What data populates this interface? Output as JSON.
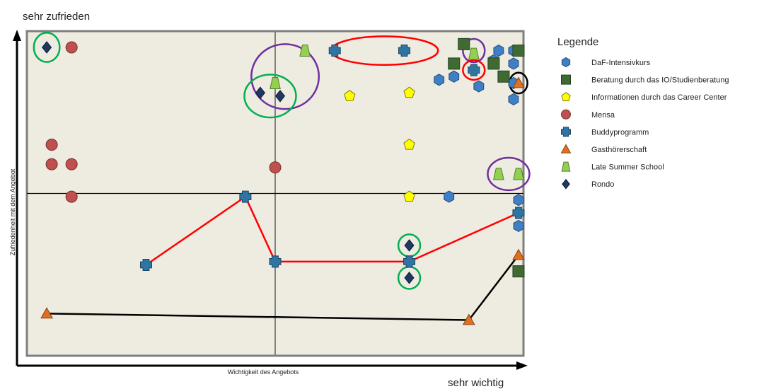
{
  "chart_data": {
    "type": "scatter",
    "title": "",
    "xlabel": "Wichtigkeit des Angebots",
    "ylabel": "Zufriedenheit mit dem Angebot",
    "x_end_label": "sehr wichtig",
    "y_end_label": "sehr zufrieden",
    "xlim": [
      0,
      100
    ],
    "ylim": [
      0,
      100
    ],
    "midline": {
      "x": 50,
      "y": 50
    },
    "plot_background": "#eeebe1",
    "legend_title": "Legende",
    "legend_position": "right",
    "series": [
      {
        "name": "DaF-Intensivkurs",
        "marker": "hexagon",
        "color": "#3f7fc6",
        "points": [
          [
            95,
            94
          ],
          [
            98,
            94
          ],
          [
            94,
            91
          ],
          [
            98,
            90
          ],
          [
            91,
            83
          ],
          [
            83,
            85
          ],
          [
            86,
            86
          ],
          [
            98,
            84
          ],
          [
            98,
            79
          ],
          [
            85,
            49
          ],
          [
            99,
            48
          ],
          [
            99,
            40
          ]
        ]
      },
      {
        "name": "Beratung durch das IO/Studienberatung",
        "marker": "square",
        "color": "#3f6b32",
        "points": [
          [
            88,
            96
          ],
          [
            99,
            94
          ],
          [
            86,
            90
          ],
          [
            94,
            90
          ],
          [
            96,
            86
          ],
          [
            99,
            26
          ]
        ]
      },
      {
        "name": "Informationen durch das Career Center",
        "marker": "pentagon",
        "color": "#ffff00",
        "points": [
          [
            65,
            80
          ],
          [
            77,
            81
          ],
          [
            77,
            65
          ],
          [
            77,
            49
          ]
        ]
      },
      {
        "name": "Mensa",
        "marker": "circle",
        "color": "#c0504d",
        "points": [
          [
            9,
            95
          ],
          [
            5,
            65
          ],
          [
            5,
            59
          ],
          [
            9,
            59
          ],
          [
            50,
            58
          ],
          [
            9,
            49
          ]
        ]
      },
      {
        "name": "Buddyprogramm",
        "marker": "plus",
        "color": "#2e75a4",
        "points": [
          [
            62,
            94
          ],
          [
            76,
            94
          ],
          [
            90,
            88
          ],
          [
            44,
            49
          ],
          [
            99,
            44
          ],
          [
            24,
            28
          ],
          [
            50,
            29
          ],
          [
            77,
            29
          ]
        ]
      },
      {
        "name": "Gasthörerschaft",
        "marker": "triangle",
        "color": "#e07020",
        "points": [
          [
            99,
            84
          ],
          [
            99,
            31
          ],
          [
            4,
            13
          ],
          [
            89,
            11
          ]
        ]
      },
      {
        "name": "Late Summer School",
        "marker": "trapezoid",
        "color": "#92d050",
        "points": [
          [
            56,
            94
          ],
          [
            90,
            93
          ],
          [
            50,
            84
          ],
          [
            95,
            56
          ],
          [
            99,
            56
          ]
        ]
      },
      {
        "name": "Rondo",
        "marker": "diamond",
        "color": "#1f3864",
        "points": [
          [
            4,
            95
          ],
          [
            47,
            81
          ],
          [
            51,
            80
          ],
          [
            77,
            34
          ],
          [
            77,
            24
          ]
        ]
      }
    ],
    "lines": [
      {
        "color": "#ff0000",
        "points": [
          [
            24,
            28
          ],
          [
            44,
            49
          ],
          [
            50,
            29
          ],
          [
            77,
            29
          ],
          [
            99,
            44
          ]
        ]
      },
      {
        "color": "#000000",
        "points": [
          [
            4,
            13
          ],
          [
            89,
            11
          ],
          [
            99,
            31
          ]
        ]
      }
    ],
    "circles": [
      {
        "color": "#00b050",
        "cx": 4,
        "cy": 95,
        "rx": 2.6,
        "ry": 4.5
      },
      {
        "color": "#7030a0",
        "cx": 52,
        "cy": 86,
        "rx": 6.8,
        "ry": 10
      },
      {
        "color": "#ff0000",
        "cx": 72,
        "cy": 94,
        "rx": 10.8,
        "ry": 4.4
      },
      {
        "color": "#7030a0",
        "cx": 90,
        "cy": 94,
        "rx": 2.2,
        "ry": 3.6
      },
      {
        "color": "#ff0000",
        "cx": 90,
        "cy": 88,
        "rx": 2.2,
        "ry": 3
      },
      {
        "color": "#000000",
        "cx": 99,
        "cy": 84,
        "rx": 1.8,
        "ry": 3.2
      },
      {
        "color": "#00b050",
        "cx": 49,
        "cy": 80,
        "rx": 5.2,
        "ry": 6.6
      },
      {
        "color": "#7030a0",
        "cx": 97,
        "cy": 56,
        "rx": 4.2,
        "ry": 5
      },
      {
        "color": "#00b050",
        "cx": 77,
        "cy": 34,
        "rx": 2.2,
        "ry": 3.4
      },
      {
        "color": "#00b050",
        "cx": 77,
        "cy": 24,
        "rx": 2.2,
        "ry": 3.4
      }
    ]
  }
}
